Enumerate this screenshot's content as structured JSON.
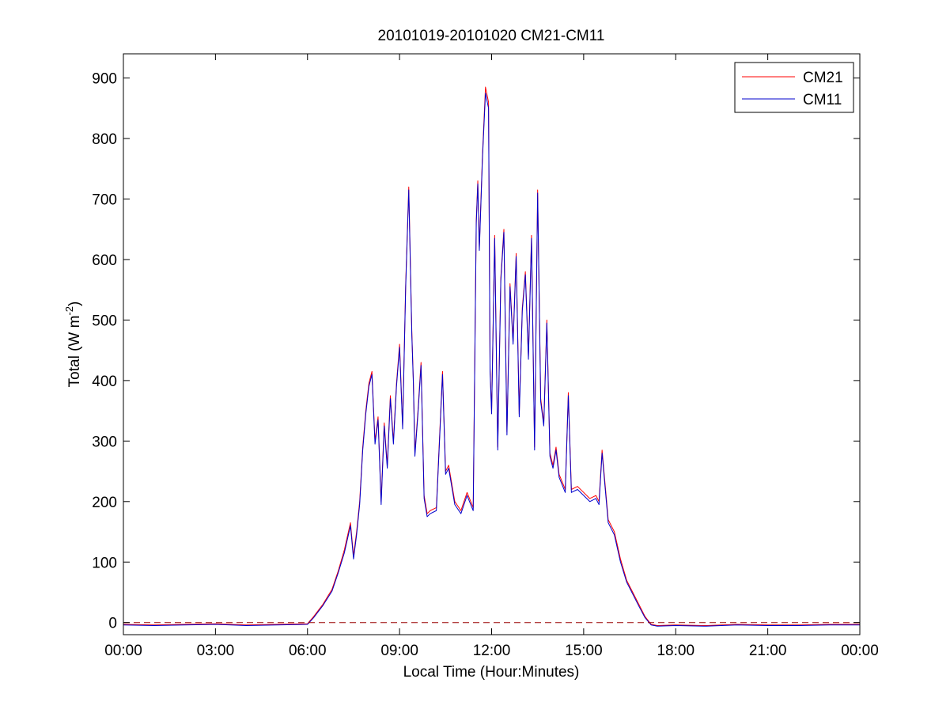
{
  "chart_data": {
    "type": "line",
    "title": "20101019-20101020 CM21-CM11",
    "xlabel": "Local Time (Hour:Minutes)",
    "ylabel": "Total (W m^-2)",
    "ylabel_base": "Total (W m",
    "ylabel_sup": "-2",
    "ylabel_close": ")",
    "xlim": [
      0,
      24
    ],
    "ylim": [
      -20,
      940
    ],
    "x_ticks": [
      0,
      3,
      6,
      9,
      12,
      15,
      18,
      21,
      24
    ],
    "x_tick_labels": [
      "00:00",
      "03:00",
      "06:00",
      "09:00",
      "12:00",
      "15:00",
      "18:00",
      "21:00",
      "00:00"
    ],
    "y_ticks": [
      0,
      100,
      200,
      300,
      400,
      500,
      600,
      700,
      800,
      900
    ],
    "y_tick_labels": [
      "0",
      "100",
      "200",
      "300",
      "400",
      "500",
      "600",
      "700",
      "800",
      "900"
    ],
    "grid": false,
    "legend_position": "top-right",
    "reference_line": {
      "y": 0,
      "style": "dashed",
      "color": "#990000"
    },
    "x_unit": "hours since 00:00 local time",
    "series": [
      {
        "name": "CM21",
        "color": "#ff0000",
        "x": [
          0,
          1,
          2,
          3,
          4,
          5,
          6,
          6.2,
          6.5,
          6.8,
          7.0,
          7.2,
          7.4,
          7.5,
          7.6,
          7.7,
          7.8,
          7.9,
          8.0,
          8.1,
          8.2,
          8.3,
          8.4,
          8.5,
          8.6,
          8.7,
          8.8,
          8.9,
          9.0,
          9.1,
          9.2,
          9.3,
          9.4,
          9.45,
          9.5,
          9.6,
          9.7,
          9.8,
          9.9,
          10.0,
          10.2,
          10.4,
          10.5,
          10.6,
          10.8,
          11.0,
          11.2,
          11.4,
          11.5,
          11.55,
          11.6,
          11.7,
          11.8,
          11.9,
          11.95,
          12.0,
          12.1,
          12.2,
          12.3,
          12.4,
          12.5,
          12.6,
          12.7,
          12.8,
          12.9,
          13.0,
          13.1,
          13.2,
          13.3,
          13.4,
          13.5,
          13.6,
          13.7,
          13.8,
          13.9,
          14.0,
          14.1,
          14.2,
          14.4,
          14.5,
          14.6,
          14.8,
          15.0,
          15.2,
          15.4,
          15.5,
          15.6,
          15.8,
          16.0,
          16.2,
          16.4,
          16.6,
          16.8,
          17.0,
          17.2,
          17.4,
          18,
          19,
          20,
          21,
          22,
          23,
          24
        ],
        "y": [
          -3,
          -4,
          -3,
          -2,
          -4,
          -3,
          -2,
          10,
          30,
          55,
          85,
          120,
          165,
          110,
          150,
          200,
          290,
          350,
          395,
          415,
          300,
          340,
          200,
          330,
          260,
          375,
          300,
          395,
          460,
          325,
          560,
          720,
          480,
          400,
          280,
          350,
          430,
          210,
          180,
          185,
          190,
          415,
          250,
          260,
          200,
          185,
          215,
          190,
          665,
          730,
          620,
          770,
          885,
          860,
          420,
          350,
          640,
          290,
          570,
          650,
          315,
          560,
          465,
          610,
          345,
          520,
          580,
          440,
          640,
          290,
          715,
          370,
          330,
          500,
          280,
          260,
          290,
          245,
          220,
          380,
          220,
          225,
          215,
          205,
          210,
          200,
          285,
          170,
          150,
          105,
          70,
          50,
          30,
          10,
          -3,
          -5,
          -4,
          -5,
          -3,
          -4,
          -4,
          -3,
          -3
        ]
      },
      {
        "name": "CM11",
        "color": "#0000cc",
        "x": [
          0,
          1,
          2,
          3,
          4,
          5,
          6,
          6.2,
          6.5,
          6.8,
          7.0,
          7.2,
          7.4,
          7.5,
          7.6,
          7.7,
          7.8,
          7.9,
          8.0,
          8.1,
          8.2,
          8.3,
          8.4,
          8.5,
          8.6,
          8.7,
          8.8,
          8.9,
          9.0,
          9.1,
          9.2,
          9.3,
          9.4,
          9.45,
          9.5,
          9.6,
          9.7,
          9.8,
          9.9,
          10.0,
          10.2,
          10.4,
          10.5,
          10.6,
          10.8,
          11.0,
          11.2,
          11.4,
          11.5,
          11.55,
          11.6,
          11.7,
          11.8,
          11.9,
          11.95,
          12.0,
          12.1,
          12.2,
          12.3,
          12.4,
          12.5,
          12.6,
          12.7,
          12.8,
          12.9,
          13.0,
          13.1,
          13.2,
          13.3,
          13.4,
          13.5,
          13.6,
          13.7,
          13.8,
          13.9,
          14.0,
          14.1,
          14.2,
          14.4,
          14.5,
          14.6,
          14.8,
          15.0,
          15.2,
          15.4,
          15.5,
          15.6,
          15.8,
          16.0,
          16.2,
          16.4,
          16.6,
          16.8,
          17.0,
          17.2,
          17.4,
          18,
          19,
          20,
          21,
          22,
          23,
          24
        ],
        "y": [
          -4,
          -5,
          -4,
          -3,
          -5,
          -4,
          -3,
          8,
          28,
          52,
          82,
          115,
          160,
          105,
          145,
          195,
          285,
          345,
          390,
          410,
          295,
          335,
          195,
          325,
          255,
          370,
          295,
          390,
          455,
          320,
          555,
          715,
          475,
          395,
          275,
          345,
          425,
          205,
          175,
          180,
          185,
          410,
          245,
          255,
          195,
          180,
          210,
          185,
          660,
          725,
          615,
          765,
          875,
          850,
          415,
          345,
          635,
          285,
          565,
          645,
          310,
          555,
          460,
          605,
          340,
          515,
          575,
          435,
          635,
          285,
          710,
          365,
          325,
          495,
          275,
          255,
          285,
          240,
          215,
          375,
          215,
          220,
          210,
          200,
          205,
          195,
          280,
          165,
          145,
          100,
          67,
          47,
          27,
          8,
          -4,
          -6,
          -5,
          -6,
          -4,
          -5,
          -5,
          -4,
          -4
        ]
      }
    ]
  }
}
